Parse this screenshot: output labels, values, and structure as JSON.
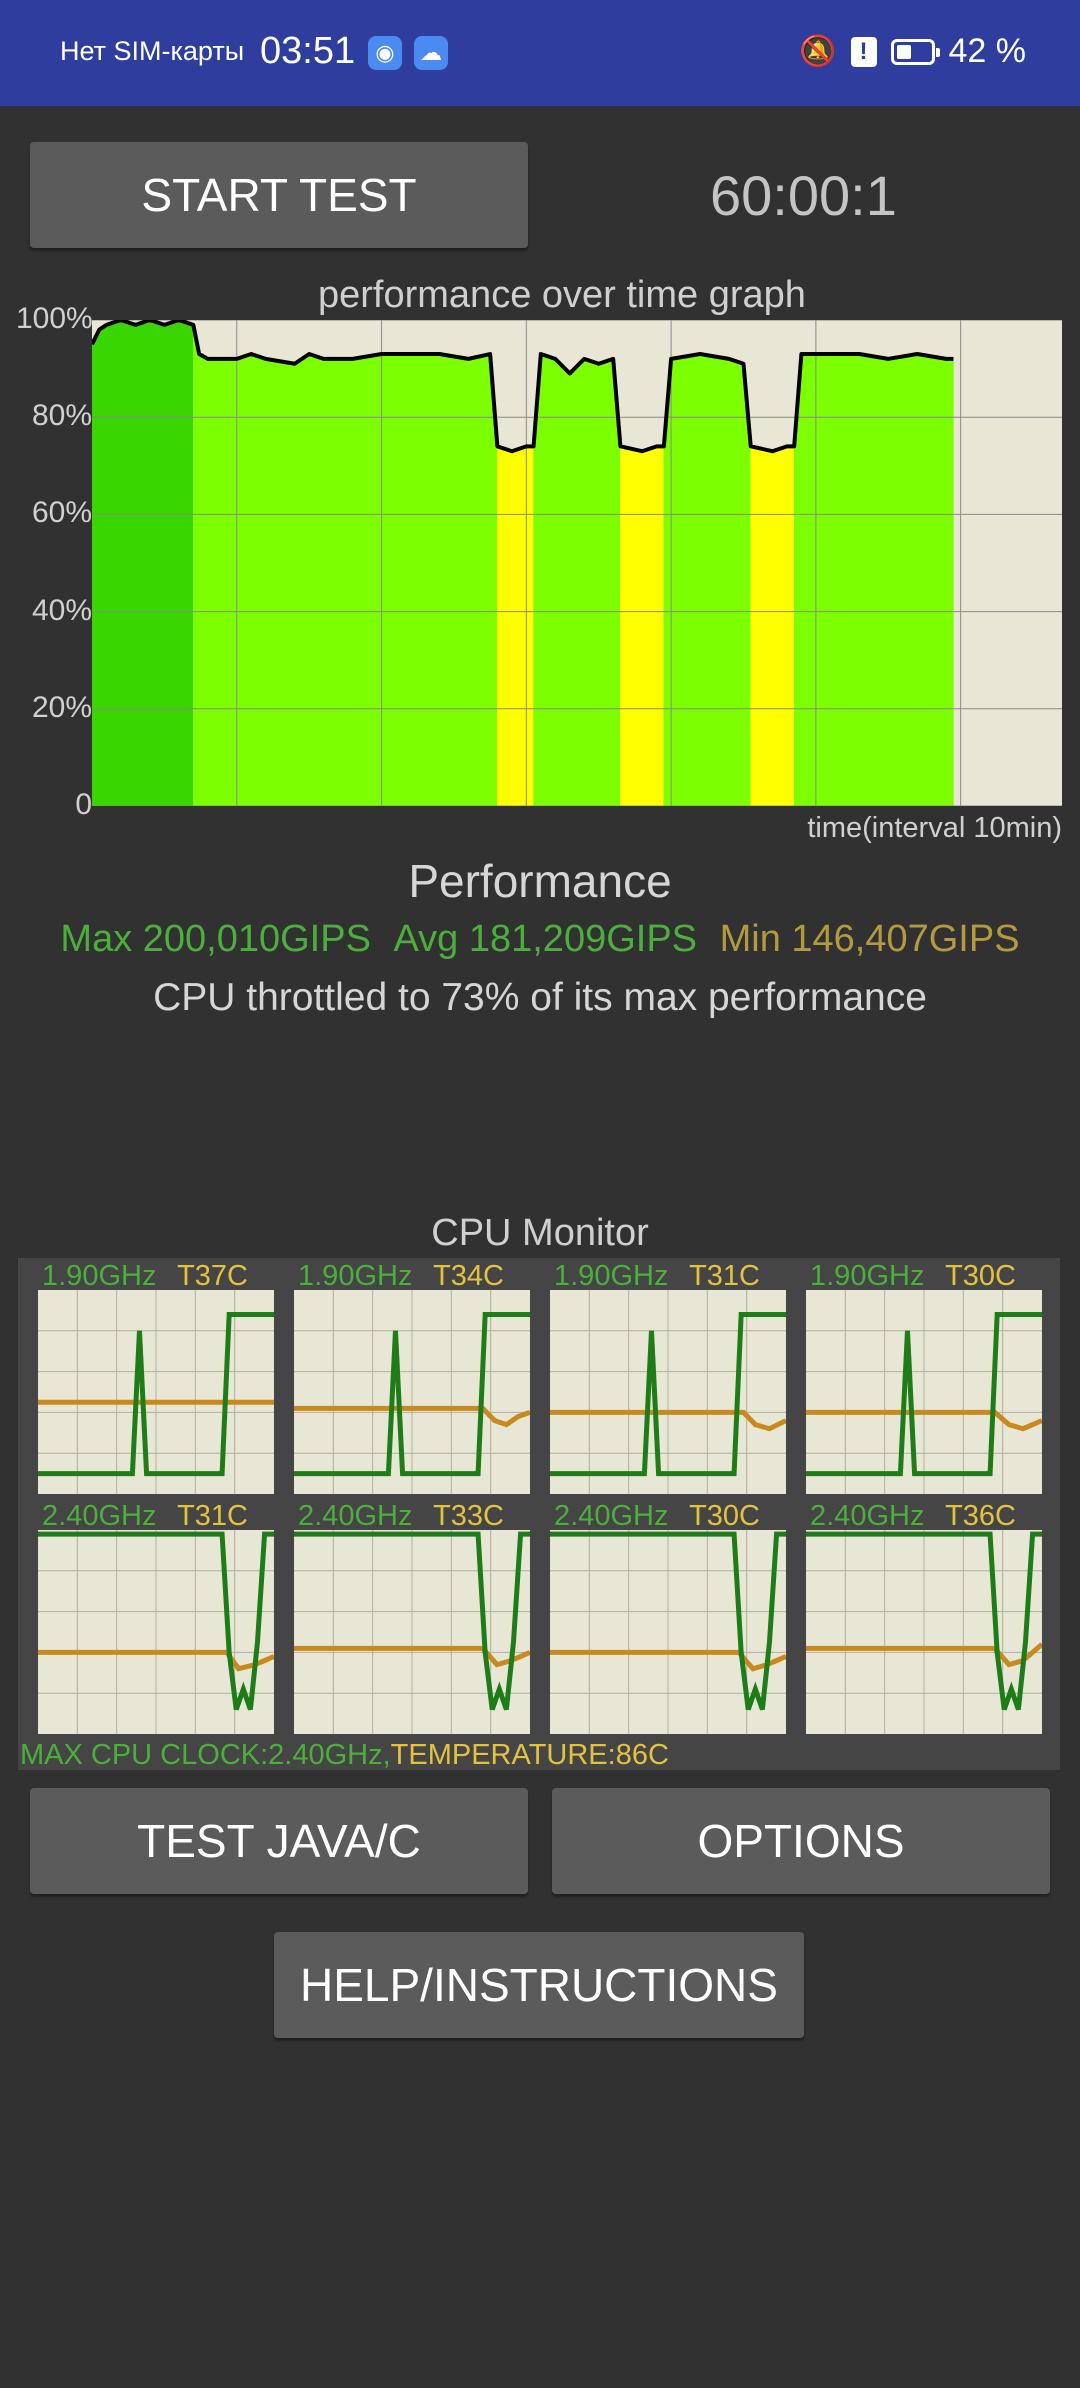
{
  "status_bar": {
    "carrier": "Нет SIM-карты",
    "time": "03:51",
    "battery_percent_label": "42 %",
    "battery_level": 0.42,
    "icons": [
      "app-icon",
      "cloud-icon",
      "bell-off-icon",
      "alert-icon",
      "battery-icon"
    ]
  },
  "controls": {
    "start_label": "START TEST",
    "timer": "60:00:1",
    "test_java_label": "TEST JAVA/C",
    "options_label": "OPTIONS",
    "help_label": "HELP/INSTRUCTIONS"
  },
  "chart_data": {
    "type": "area",
    "title": "performance over time graph",
    "xlabel": "time(interval 10min)",
    "ylabel": "",
    "ylim": [
      0,
      100
    ],
    "yticks": [
      "100%",
      "80%",
      "60%",
      "40%",
      "20%",
      "0"
    ],
    "x_domain_minutes": [
      0,
      67
    ],
    "grid": true,
    "colors": {
      "high": "#7cff00",
      "mid": "#3ad600",
      "low": "#ffff00",
      "background": "#e8e6d4",
      "line": "#000000"
    },
    "series": [
      {
        "values": [
          [
            0,
            95
          ],
          [
            0.5,
            98
          ],
          [
            1,
            99
          ],
          [
            2,
            100
          ],
          [
            3,
            99
          ],
          [
            4,
            100
          ],
          [
            5,
            99
          ],
          [
            6,
            100
          ],
          [
            7,
            99
          ],
          [
            7.4,
            93
          ],
          [
            8,
            92
          ],
          [
            10,
            92
          ],
          [
            11,
            93
          ],
          [
            12,
            92
          ],
          [
            14,
            91
          ],
          [
            15,
            93
          ],
          [
            16,
            92
          ],
          [
            18,
            92
          ],
          [
            20,
            93
          ],
          [
            22,
            93
          ],
          [
            24,
            93
          ],
          [
            26,
            92
          ],
          [
            27.5,
            93
          ],
          [
            28,
            74
          ],
          [
            29,
            73
          ],
          [
            30,
            74
          ],
          [
            30.5,
            74
          ],
          [
            31,
            93
          ],
          [
            32,
            92
          ],
          [
            33,
            89
          ],
          [
            34,
            92
          ],
          [
            35,
            91
          ],
          [
            36,
            92
          ],
          [
            36.5,
            74
          ],
          [
            38,
            73
          ],
          [
            39,
            74
          ],
          [
            39.5,
            74
          ],
          [
            40,
            92
          ],
          [
            42,
            93
          ],
          [
            44,
            92
          ],
          [
            45,
            91
          ],
          [
            45.5,
            74
          ],
          [
            47,
            73
          ],
          [
            48,
            74
          ],
          [
            48.5,
            74
          ],
          [
            49,
            93
          ],
          [
            51,
            93
          ],
          [
            53,
            93
          ],
          [
            55,
            92
          ],
          [
            57,
            93
          ],
          [
            59,
            92
          ],
          [
            59.5,
            92
          ]
        ]
      }
    ]
  },
  "performance": {
    "heading": "Performance",
    "max_text": "Max 200,010GIPS",
    "avg_text": "Avg 181,209GIPS",
    "min_text": "Min 146,407GIPS",
    "throttled_text": "CPU throttled to 73% of its max performance",
    "colors": {
      "max": "#4caf3c",
      "avg": "#4caf3c",
      "min": "#b39a3d"
    }
  },
  "cpu_monitor": {
    "title": "CPU Monitor",
    "max_clock_text": "MAX CPU CLOCK:2.40GHz,",
    "temperature_text": "TEMPERATURE:86C",
    "colors": {
      "freq": "#4caf3c",
      "temp": "#e3c23f",
      "clock_line": "#1e7d18",
      "temp_line": "#c88a1f",
      "panel": "#e8e6d4"
    },
    "cores": [
      {
        "freq": "1.90GHz",
        "temp": "T37C",
        "clock": [
          [
            0,
            10
          ],
          [
            40,
            10
          ],
          [
            43,
            80
          ],
          [
            46,
            10
          ],
          [
            78,
            10
          ],
          [
            81,
            88
          ],
          [
            100,
            88
          ]
        ],
        "heat": [
          [
            0,
            45
          ],
          [
            100,
            45
          ]
        ]
      },
      {
        "freq": "1.90GHz",
        "temp": "T34C",
        "clock": [
          [
            0,
            10
          ],
          [
            40,
            10
          ],
          [
            43,
            80
          ],
          [
            46,
            10
          ],
          [
            78,
            10
          ],
          [
            81,
            88
          ],
          [
            100,
            88
          ]
        ],
        "heat": [
          [
            0,
            42
          ],
          [
            80,
            42
          ],
          [
            85,
            36
          ],
          [
            90,
            34
          ],
          [
            95,
            38
          ],
          [
            100,
            40
          ]
        ]
      },
      {
        "freq": "1.90GHz",
        "temp": "T31C",
        "clock": [
          [
            0,
            10
          ],
          [
            40,
            10
          ],
          [
            43,
            80
          ],
          [
            46,
            10
          ],
          [
            78,
            10
          ],
          [
            81,
            88
          ],
          [
            100,
            88
          ]
        ],
        "heat": [
          [
            0,
            40
          ],
          [
            82,
            40
          ],
          [
            87,
            34
          ],
          [
            93,
            32
          ],
          [
            100,
            36
          ]
        ]
      },
      {
        "freq": "1.90GHz",
        "temp": "T30C",
        "clock": [
          [
            0,
            10
          ],
          [
            40,
            10
          ],
          [
            43,
            80
          ],
          [
            46,
            10
          ],
          [
            78,
            10
          ],
          [
            81,
            88
          ],
          [
            100,
            88
          ]
        ],
        "heat": [
          [
            0,
            40
          ],
          [
            80,
            40
          ],
          [
            86,
            34
          ],
          [
            92,
            32
          ],
          [
            100,
            36
          ]
        ]
      },
      {
        "freq": "2.40GHz",
        "temp": "T31C",
        "clock": [
          [
            0,
            98
          ],
          [
            78,
            98
          ],
          [
            81,
            40
          ],
          [
            84,
            12
          ],
          [
            87,
            22
          ],
          [
            90,
            12
          ],
          [
            93,
            45
          ],
          [
            96,
            98
          ],
          [
            100,
            98
          ]
        ],
        "heat": [
          [
            0,
            40
          ],
          [
            80,
            40
          ],
          [
            85,
            32
          ],
          [
            92,
            34
          ],
          [
            100,
            38
          ]
        ]
      },
      {
        "freq": "2.40GHz",
        "temp": "T33C",
        "clock": [
          [
            0,
            98
          ],
          [
            78,
            98
          ],
          [
            81,
            40
          ],
          [
            84,
            12
          ],
          [
            87,
            22
          ],
          [
            90,
            12
          ],
          [
            93,
            45
          ],
          [
            96,
            98
          ],
          [
            100,
            98
          ]
        ],
        "heat": [
          [
            0,
            42
          ],
          [
            80,
            42
          ],
          [
            86,
            34
          ],
          [
            92,
            36
          ],
          [
            100,
            40
          ]
        ]
      },
      {
        "freq": "2.40GHz",
        "temp": "T30C",
        "clock": [
          [
            0,
            98
          ],
          [
            78,
            98
          ],
          [
            81,
            40
          ],
          [
            84,
            12
          ],
          [
            87,
            22
          ],
          [
            90,
            12
          ],
          [
            93,
            45
          ],
          [
            96,
            98
          ],
          [
            100,
            98
          ]
        ],
        "heat": [
          [
            0,
            40
          ],
          [
            80,
            40
          ],
          [
            86,
            32
          ],
          [
            92,
            34
          ],
          [
            100,
            38
          ]
        ]
      },
      {
        "freq": "2.40GHz",
        "temp": "T36C",
        "clock": [
          [
            0,
            98
          ],
          [
            78,
            98
          ],
          [
            81,
            40
          ],
          [
            84,
            12
          ],
          [
            87,
            22
          ],
          [
            90,
            12
          ],
          [
            93,
            45
          ],
          [
            96,
            98
          ],
          [
            100,
            98
          ]
        ],
        "heat": [
          [
            0,
            42
          ],
          [
            80,
            42
          ],
          [
            86,
            34
          ],
          [
            92,
            36
          ],
          [
            100,
            44
          ]
        ]
      }
    ]
  }
}
